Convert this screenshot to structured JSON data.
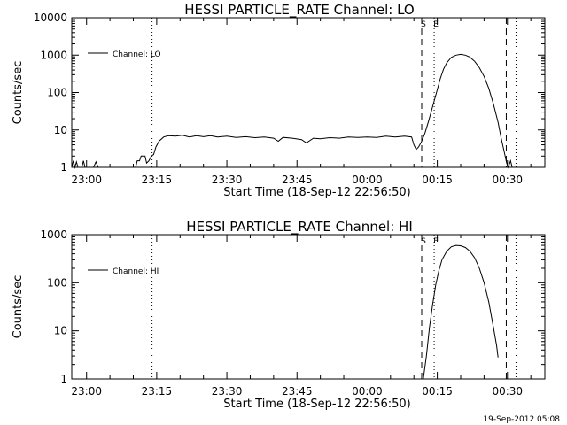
{
  "footer": {
    "stamp": "19-Sep-2012 05:08"
  },
  "chart_data": [
    {
      "type": "line",
      "title": "HESSI PARTICLE_RATE Channel: LO",
      "xlabel": "Start Time (18-Sep-12 22:56:50)",
      "ylabel": "Counts/sec",
      "yscale": "log",
      "xlim": [
        "22:56:50",
        "00:38:00"
      ],
      "ylim": [
        1,
        10000
      ],
      "xticks": [
        "23:00",
        "23:15",
        "23:30",
        "23:45",
        "00:00",
        "00:15",
        "00:30"
      ],
      "yticks": [
        "1",
        "10",
        "100",
        "1000",
        "10000"
      ],
      "grid": false,
      "legend": {
        "position": "top-left",
        "entries": [
          "Channel: LO"
        ]
      },
      "markers": [
        {
          "label": "",
          "time": "23:14:00",
          "style": "dotted"
        },
        {
          "label": "S",
          "time": "00:11:40",
          "style": "dashed"
        },
        {
          "label": "E",
          "time": "00:14:20",
          "style": "dotted"
        },
        {
          "label": "",
          "time": "00:29:45",
          "style": "dashed"
        },
        {
          "label": "",
          "time": "00:31:50",
          "style": "dotted"
        }
      ],
      "series": [
        {
          "name": "Channel: LO",
          "points": [
            [
              "22:56:50",
              1
            ],
            [
              "22:57:10",
              1.5
            ],
            [
              "22:57:30",
              1
            ],
            [
              "22:57:50",
              1.4
            ],
            [
              "22:58:10",
              1
            ],
            [
              "22:59:00",
              1
            ],
            [
              "22:59:20",
              1.5
            ],
            [
              "22:59:40",
              1
            ],
            [
              "23:01:30",
              1
            ],
            [
              "23:02:00",
              1.4
            ],
            [
              "23:02:30",
              1
            ],
            [
              "23:10:30",
              1
            ],
            [
              "23:10:50",
              1.5
            ],
            [
              "23:11:20",
              1.5
            ],
            [
              "23:11:40",
              2
            ],
            [
              "23:12:30",
              2
            ],
            [
              "23:12:50",
              1.3
            ],
            [
              "23:13:20",
              1.5
            ],
            [
              "23:13:50",
              2
            ],
            [
              "23:14:20",
              2.2
            ],
            [
              "23:14:50",
              3.5
            ],
            [
              "23:15:30",
              5
            ],
            [
              "23:16:30",
              6.5
            ],
            [
              "23:17:30",
              7
            ],
            [
              "23:19:00",
              6.8
            ],
            [
              "23:20:30",
              7.2
            ],
            [
              "23:22:00",
              6.5
            ],
            [
              "23:23:30",
              7
            ],
            [
              "23:25:00",
              6.6
            ],
            [
              "23:26:30",
              7
            ],
            [
              "23:28:00",
              6.5
            ],
            [
              "23:30:00",
              6.8
            ],
            [
              "23:32:00",
              6.3
            ],
            [
              "23:34:00",
              6.6
            ],
            [
              "23:36:00",
              6.2
            ],
            [
              "23:38:00",
              6.5
            ],
            [
              "23:40:00",
              6
            ],
            [
              "23:41:00",
              5
            ],
            [
              "23:42:00",
              6.3
            ],
            [
              "23:44:00",
              6
            ],
            [
              "23:46:00",
              5.5
            ],
            [
              "23:47:00",
              4.5
            ],
            [
              "23:48:30",
              6
            ],
            [
              "23:50:00",
              5.8
            ],
            [
              "23:52:00",
              6.2
            ],
            [
              "23:54:00",
              6
            ],
            [
              "23:56:00",
              6.5
            ],
            [
              "23:58:00",
              6.3
            ],
            [
              "00:00:00",
              6.5
            ],
            [
              "00:02:00",
              6.3
            ],
            [
              "00:04:00",
              6.8
            ],
            [
              "00:06:00",
              6.5
            ],
            [
              "00:08:00",
              6.8
            ],
            [
              "00:09:30",
              6.5
            ],
            [
              "00:10:00",
              4
            ],
            [
              "00:10:30",
              3
            ],
            [
              "00:11:00",
              3.5
            ],
            [
              "00:11:40",
              5
            ],
            [
              "00:12:20",
              8
            ],
            [
              "00:13:00",
              15
            ],
            [
              "00:13:40",
              30
            ],
            [
              "00:14:20",
              60
            ],
            [
              "00:15:00",
              120
            ],
            [
              "00:15:40",
              240
            ],
            [
              "00:16:20",
              420
            ],
            [
              "00:17:00",
              620
            ],
            [
              "00:18:00",
              870
            ],
            [
              "00:19:00",
              1000
            ],
            [
              "00:20:00",
              1050
            ],
            [
              "00:21:00",
              1000
            ],
            [
              "00:22:00",
              880
            ],
            [
              "00:23:00",
              680
            ],
            [
              "00:24:00",
              460
            ],
            [
              "00:25:00",
              270
            ],
            [
              "00:26:00",
              130
            ],
            [
              "00:27:00",
              50
            ],
            [
              "00:28:00",
              16
            ],
            [
              "00:28:40",
              6
            ],
            [
              "00:29:20",
              2.5
            ],
            [
              "00:29:50",
              1.3
            ],
            [
              "00:30:10",
              1
            ],
            [
              "00:30:40",
              1.5
            ],
            [
              "00:31:00",
              1
            ]
          ]
        }
      ]
    },
    {
      "type": "line",
      "title": "HESSI PARTICLE_RATE Channel: HI",
      "xlabel": "Start Time (18-Sep-12 22:56:50)",
      "ylabel": "Counts/sec",
      "yscale": "log",
      "xlim": [
        "22:56:50",
        "00:38:00"
      ],
      "ylim": [
        1,
        1000
      ],
      "xticks": [
        "23:00",
        "23:15",
        "23:30",
        "23:45",
        "00:00",
        "00:15",
        "00:30"
      ],
      "yticks": [
        "1",
        "10",
        "100",
        "1000"
      ],
      "grid": false,
      "legend": {
        "position": "top-left",
        "entries": [
          "Channel: HI"
        ]
      },
      "markers": [
        {
          "label": "",
          "time": "23:14:00",
          "style": "dotted"
        },
        {
          "label": "S",
          "time": "00:11:40",
          "style": "dashed"
        },
        {
          "label": "E",
          "time": "00:14:20",
          "style": "dotted"
        },
        {
          "label": "",
          "time": "00:29:45",
          "style": "dashed"
        },
        {
          "label": "",
          "time": "00:31:50",
          "style": "dotted"
        }
      ],
      "series": [
        {
          "name": "Channel: HI",
          "points": [
            [
              "00:12:00",
              1
            ],
            [
              "00:12:40",
              3
            ],
            [
              "00:13:20",
              12
            ],
            [
              "00:14:00",
              35
            ],
            [
              "00:14:40",
              90
            ],
            [
              "00:15:20",
              180
            ],
            [
              "00:16:00",
              300
            ],
            [
              "00:17:00",
              450
            ],
            [
              "00:18:00",
              560
            ],
            [
              "00:19:00",
              600
            ],
            [
              "00:20:00",
              590
            ],
            [
              "00:21:00",
              540
            ],
            [
              "00:22:00",
              450
            ],
            [
              "00:23:00",
              330
            ],
            [
              "00:24:00",
              200
            ],
            [
              "00:25:00",
              100
            ],
            [
              "00:26:00",
              40
            ],
            [
              "00:27:00",
              12
            ],
            [
              "00:27:40",
              5
            ],
            [
              "00:28:00",
              2.8
            ]
          ]
        }
      ]
    }
  ]
}
